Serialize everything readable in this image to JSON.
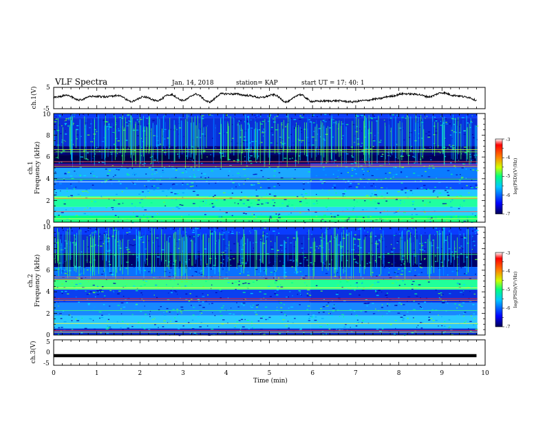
{
  "header": {
    "title": "VLF Spectra",
    "date": "Jan. 14, 2018",
    "station": "station= KAP",
    "start": "start  UT =   17: 40: 1"
  },
  "chart_data": [
    {
      "type": "line",
      "ylabel": "ch.1(V)",
      "xlim": [
        0,
        10
      ],
      "ylim": [
        -5,
        5
      ],
      "yticks": [
        "5",
        "-5"
      ],
      "x": [
        0.0,
        0.3,
        0.6,
        0.9,
        1.2,
        1.5,
        1.8,
        2.1,
        2.4,
        2.7,
        3.0,
        3.3,
        3.6,
        3.9,
        4.2,
        4.5,
        4.8,
        5.1,
        5.4,
        5.7,
        6.0,
        6.3,
        6.6,
        6.9,
        7.2,
        7.5,
        7.8,
        8.1,
        8.4,
        8.7,
        9.0,
        9.3,
        9.6,
        9.8
      ],
      "y": [
        0.3,
        1.2,
        -0.9,
        0.8,
        0.6,
        1.2,
        -1.6,
        0.6,
        -1.3,
        1.7,
        -1.1,
        1.8,
        -1.8,
        2.0,
        1.9,
        1.2,
        0.2,
        1.5,
        -1.8,
        1.6,
        -1.6,
        -1.4,
        -1.3,
        -1.8,
        -1.2,
        -0.4,
        0.8,
        2.0,
        1.8,
        0.6,
        2.5,
        1.2,
        0.4,
        -1.0
      ]
    },
    {
      "type": "heatmap",
      "ylabel_top": "ch.1",
      "ylabel": "Frequency  (kHz)",
      "xlim": [
        0,
        10
      ],
      "ylim": [
        0,
        10
      ],
      "yticks": [
        "0",
        "2",
        "4",
        "6",
        "8",
        "10"
      ],
      "colorbar": {
        "label": "log(PSD)(V²/Hz)",
        "range": [
          -7,
          -3
        ],
        "ticks": [
          "-3",
          "-4",
          "-5",
          "-6",
          "-7"
        ],
        "colors": [
          "#000055",
          "#0000ff",
          "#00c8ff",
          "#00ff7f",
          "#d0ff00",
          "#ff7f00",
          "#ff0000",
          "#ffffff"
        ]
      },
      "change_time": 5.95
    },
    {
      "type": "heatmap",
      "ylabel_top": "ch.2",
      "ylabel": "Frequency  (kHz)",
      "xlim": [
        0,
        10
      ],
      "ylim": [
        0,
        10
      ],
      "yticks": [
        "0",
        "2",
        "4",
        "6",
        "8",
        "10"
      ],
      "colorbar": {
        "label": "log(PSD)(V²/Hz)",
        "range": [
          -7,
          -3
        ],
        "ticks": [
          "-3",
          "-4",
          "-5",
          "-6",
          "-7"
        ],
        "colors": [
          "#000055",
          "#0000ff",
          "#00c8ff",
          "#00ff7f",
          "#d0ff00",
          "#ff7f00",
          "#ff0000",
          "#ffffff"
        ]
      },
      "change_time": 5.95
    },
    {
      "type": "line",
      "ylabel": "ch.3(V)",
      "xlabel": "Time  (min)",
      "xlim": [
        0,
        10
      ],
      "ylim": [
        -5,
        5
      ],
      "yticks": [
        "5",
        "0",
        "-5"
      ],
      "xticks": [
        "0",
        "1",
        "2",
        "3",
        "4",
        "5",
        "6",
        "7",
        "8",
        "9",
        "10"
      ],
      "x": [
        0,
        9.8
      ],
      "y": [
        -1.2,
        -1.2
      ]
    }
  ]
}
